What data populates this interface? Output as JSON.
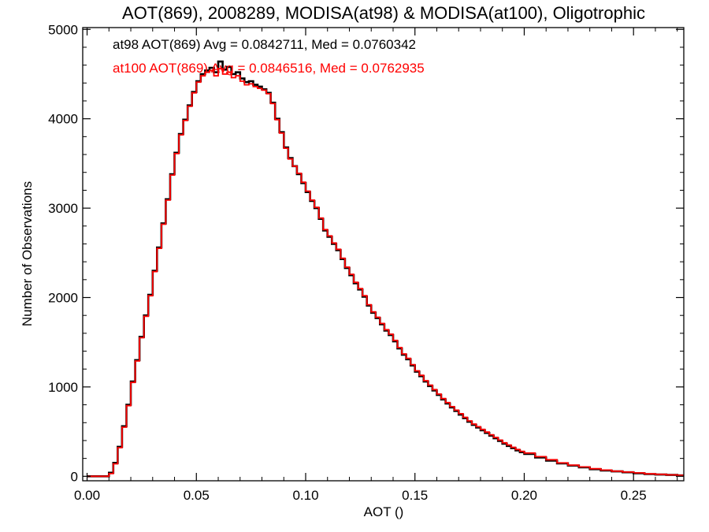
{
  "chart_data": {
    "type": "line",
    "title": "AOT(869), 2008289, MODISA(at98) & MODISA(at100), Oligotrophic",
    "xlabel": "AOT ()",
    "ylabel": "Number of Observations",
    "xlim": [
      -0.002,
      0.273
    ],
    "ylim": [
      -50,
      5020
    ],
    "xticks": [
      0.0,
      0.05,
      0.1,
      0.15,
      0.2,
      0.25
    ],
    "xtick_labels": [
      "0.00",
      "0.05",
      "0.10",
      "0.15",
      "0.20",
      "0.25"
    ],
    "yticks": [
      0,
      1000,
      2000,
      3000,
      4000,
      5000
    ],
    "ytick_labels": [
      "0",
      "1000",
      "2000",
      "3000",
      "4000",
      "5000"
    ],
    "grid": false,
    "annotations": [
      {
        "text": "at98 AOT(869) Avg = 0.0842711, Med = 0.0760342",
        "color": "#000000"
      },
      {
        "text": "at100 AOT(869) Avg = 0.0846516, Med = 0.0762935",
        "color": "#ff0000"
      }
    ],
    "series": [
      {
        "color": "#000000",
        "x": [
          0.0,
          0.005,
          0.008,
          0.01,
          0.012,
          0.014,
          0.016,
          0.018,
          0.02,
          0.022,
          0.024,
          0.026,
          0.028,
          0.03,
          0.032,
          0.034,
          0.036,
          0.038,
          0.04,
          0.042,
          0.044,
          0.046,
          0.048,
          0.05,
          0.052,
          0.054,
          0.056,
          0.058,
          0.06,
          0.062,
          0.064,
          0.066,
          0.068,
          0.07,
          0.072,
          0.074,
          0.076,
          0.078,
          0.08,
          0.082,
          0.084,
          0.086,
          0.088,
          0.09,
          0.092,
          0.094,
          0.096,
          0.098,
          0.1,
          0.102,
          0.104,
          0.106,
          0.108,
          0.11,
          0.112,
          0.114,
          0.116,
          0.118,
          0.12,
          0.122,
          0.124,
          0.126,
          0.128,
          0.13,
          0.132,
          0.134,
          0.136,
          0.138,
          0.14,
          0.142,
          0.144,
          0.146,
          0.148,
          0.15,
          0.152,
          0.154,
          0.156,
          0.158,
          0.16,
          0.162,
          0.164,
          0.166,
          0.168,
          0.17,
          0.172,
          0.174,
          0.176,
          0.178,
          0.18,
          0.182,
          0.184,
          0.186,
          0.188,
          0.19,
          0.192,
          0.194,
          0.196,
          0.198,
          0.2,
          0.205,
          0.21,
          0.215,
          0.22,
          0.225,
          0.23,
          0.235,
          0.24,
          0.245,
          0.25,
          0.255,
          0.26,
          0.265,
          0.27
        ],
        "y": [
          0,
          0,
          0,
          40,
          150,
          330,
          560,
          800,
          1060,
          1300,
          1560,
          1800,
          2030,
          2300,
          2560,
          2830,
          3100,
          3380,
          3620,
          3830,
          3990,
          4150,
          4300,
          4420,
          4500,
          4540,
          4570,
          4520,
          4640,
          4550,
          4580,
          4500,
          4520,
          4450,
          4410,
          4420,
          4380,
          4360,
          4330,
          4290,
          4180,
          4000,
          3850,
          3680,
          3560,
          3470,
          3380,
          3280,
          3180,
          3080,
          3000,
          2880,
          2750,
          2680,
          2600,
          2530,
          2430,
          2330,
          2250,
          2160,
          2090,
          2010,
          1910,
          1830,
          1770,
          1700,
          1630,
          1580,
          1510,
          1430,
          1360,
          1310,
          1240,
          1170,
          1120,
          1060,
          1010,
          960,
          910,
          860,
          815,
          770,
          730,
          690,
          650,
          610,
          575,
          545,
          515,
          485,
          455,
          425,
          395,
          365,
          340,
          315,
          290,
          270,
          250,
          210,
          175,
          145,
          120,
          100,
          80,
          65,
          55,
          45,
          35,
          25,
          20,
          15,
          10
        ]
      },
      {
        "color": "#ff0000",
        "x": [
          0.0,
          0.005,
          0.008,
          0.01,
          0.012,
          0.014,
          0.016,
          0.018,
          0.02,
          0.022,
          0.024,
          0.026,
          0.028,
          0.03,
          0.032,
          0.034,
          0.036,
          0.038,
          0.04,
          0.042,
          0.044,
          0.046,
          0.048,
          0.05,
          0.052,
          0.054,
          0.056,
          0.058,
          0.06,
          0.062,
          0.064,
          0.066,
          0.068,
          0.07,
          0.072,
          0.074,
          0.076,
          0.078,
          0.08,
          0.082,
          0.084,
          0.086,
          0.088,
          0.09,
          0.092,
          0.094,
          0.096,
          0.098,
          0.1,
          0.102,
          0.104,
          0.106,
          0.108,
          0.11,
          0.112,
          0.114,
          0.116,
          0.118,
          0.12,
          0.122,
          0.124,
          0.126,
          0.128,
          0.13,
          0.132,
          0.134,
          0.136,
          0.138,
          0.14,
          0.142,
          0.144,
          0.146,
          0.148,
          0.15,
          0.152,
          0.154,
          0.156,
          0.158,
          0.16,
          0.162,
          0.164,
          0.166,
          0.168,
          0.17,
          0.172,
          0.174,
          0.176,
          0.178,
          0.18,
          0.182,
          0.184,
          0.186,
          0.188,
          0.19,
          0.192,
          0.194,
          0.196,
          0.198,
          0.2,
          0.205,
          0.21,
          0.215,
          0.22,
          0.225,
          0.23,
          0.235,
          0.24,
          0.245,
          0.25,
          0.255,
          0.26,
          0.265,
          0.27
        ],
        "y": [
          0,
          0,
          0,
          30,
          140,
          320,
          550,
          790,
          1050,
          1290,
          1550,
          1790,
          2020,
          2290,
          2550,
          2820,
          3090,
          3370,
          3610,
          3820,
          3980,
          4140,
          4290,
          4410,
          4480,
          4520,
          4540,
          4480,
          4560,
          4500,
          4520,
          4460,
          4480,
          4420,
          4380,
          4390,
          4360,
          4340,
          4320,
          4280,
          4170,
          3990,
          3840,
          3670,
          3550,
          3470,
          3390,
          3290,
          3190,
          3090,
          3010,
          2890,
          2760,
          2690,
          2610,
          2540,
          2440,
          2340,
          2260,
          2170,
          2100,
          2020,
          1920,
          1840,
          1780,
          1710,
          1640,
          1590,
          1520,
          1440,
          1370,
          1320,
          1250,
          1180,
          1130,
          1070,
          1020,
          970,
          920,
          870,
          825,
          780,
          740,
          700,
          660,
          620,
          585,
          555,
          525,
          495,
          465,
          435,
          405,
          375,
          350,
          325,
          300,
          280,
          260,
          220,
          185,
          150,
          125,
          105,
          85,
          70,
          58,
          48,
          38,
          28,
          22,
          16,
          12
        ]
      }
    ]
  }
}
